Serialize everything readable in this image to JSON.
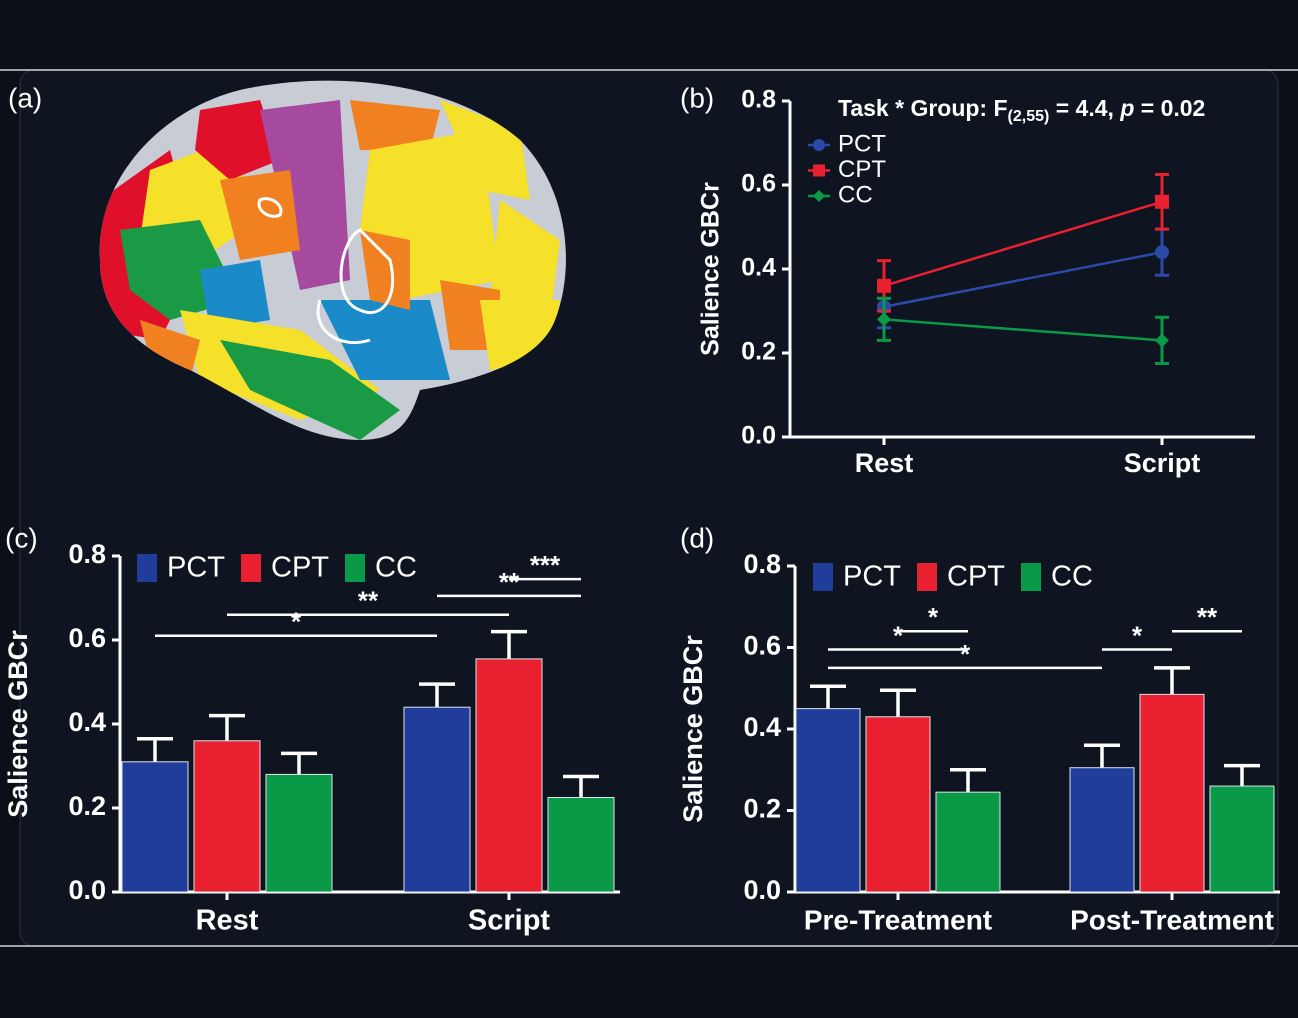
{
  "panel_labels": [
    "(a)",
    "(b)",
    "(c)",
    "(d)"
  ],
  "chart_data": [
    {
      "type": "line",
      "y_label": "Salience GBCr",
      "annotation": {
        "prefix": "Task * Group: F",
        "subscript": "(2,55)",
        "middle": " = 4.4, ",
        "italic": "p",
        "suffix": " = 0.02"
      },
      "categories": [
        "Rest",
        "Script"
      ],
      "series": [
        {
          "name": "PCT",
          "color": "#2b4aa8",
          "marker": "circle",
          "values": [
            0.31,
            0.44
          ],
          "errors": [
            0.05,
            0.055
          ]
        },
        {
          "name": "CPT",
          "color": "#e8202f",
          "marker": "square",
          "values": [
            0.36,
            0.56
          ],
          "errors": [
            0.06,
            0.065
          ]
        },
        {
          "name": "CC",
          "color": "#0a9a47",
          "marker": "diamond",
          "values": [
            0.28,
            0.23
          ],
          "errors": [
            0.05,
            0.055
          ]
        }
      ],
      "ylim": [
        0,
        0.8
      ],
      "yticks": [
        {
          "value": 0,
          "label": "0.0"
        },
        0.2,
        0.4,
        0.6,
        0.8
      ]
    },
    {
      "type": "bar",
      "y_label": "Salience GBCr",
      "categories": [
        "Rest",
        "Script"
      ],
      "series": [
        {
          "name": "PCT",
          "color": "#1f3d99",
          "values": [
            0.31,
            0.44
          ],
          "errors": [
            0.055,
            0.055
          ]
        },
        {
          "name": "CPT",
          "color": "#e8202f",
          "values": [
            0.36,
            0.555
          ],
          "errors": [
            0.06,
            0.065
          ]
        },
        {
          "name": "CC",
          "color": "#0a9a47",
          "values": [
            0.28,
            0.225
          ],
          "errors": [
            0.05,
            0.05
          ]
        }
      ],
      "significance": [
        {
          "label": "*",
          "between": [
            [
              0,
              0
            ],
            [
              1,
              0
            ]
          ],
          "y": 0.61
        },
        {
          "label": "**",
          "between": [
            [
              0,
              1
            ],
            [
              1,
              1
            ]
          ],
          "y": 0.66
        },
        {
          "label": "**",
          "between": [
            [
              1,
              0
            ],
            [
              1,
              2
            ]
          ],
          "y": 0.705
        },
        {
          "label": "***",
          "between": [
            [
              1,
              1
            ],
            [
              1,
              2
            ]
          ],
          "y": 0.745
        }
      ],
      "ylim": [
        0,
        0.8
      ],
      "yticks": [
        {
          "value": 0,
          "label": "0.0"
        },
        0.2,
        0.4,
        0.6,
        0.8
      ]
    },
    {
      "type": "bar",
      "y_label": "Salience GBCr",
      "categories": [
        "Pre-Treatment",
        "Post-Treatment"
      ],
      "series": [
        {
          "name": "PCT",
          "color": "#1f3d99",
          "values": [
            0.45,
            0.305
          ],
          "errors": [
            0.055,
            0.055
          ]
        },
        {
          "name": "CPT",
          "color": "#e8202f",
          "values": [
            0.43,
            0.485
          ],
          "errors": [
            0.065,
            0.065
          ]
        },
        {
          "name": "CC",
          "color": "#0a9a47",
          "values": [
            0.245,
            0.26
          ],
          "errors": [
            0.055,
            0.05
          ]
        }
      ],
      "significance": [
        {
          "label": "*",
          "between": [
            [
              0,
              0
            ],
            [
              1,
              0
            ]
          ],
          "y": 0.55
        },
        {
          "label": "*",
          "between": [
            [
              0,
              0
            ],
            [
              0,
              2
            ]
          ],
          "y": 0.595
        },
        {
          "label": "*",
          "between": [
            [
              0,
              1
            ],
            [
              0,
              2
            ]
          ],
          "y": 0.64
        },
        {
          "label": "*",
          "between": [
            [
              1,
              0
            ],
            [
              1,
              1
            ]
          ],
          "y": 0.595
        },
        {
          "label": "**",
          "between": [
            [
              1,
              1
            ],
            [
              1,
              2
            ]
          ],
          "y": 0.64
        }
      ],
      "ylim": [
        0,
        0.8
      ],
      "yticks": [
        {
          "value": 0,
          "label": "0.0"
        },
        0.2,
        0.4,
        0.6,
        0.8
      ]
    }
  ]
}
